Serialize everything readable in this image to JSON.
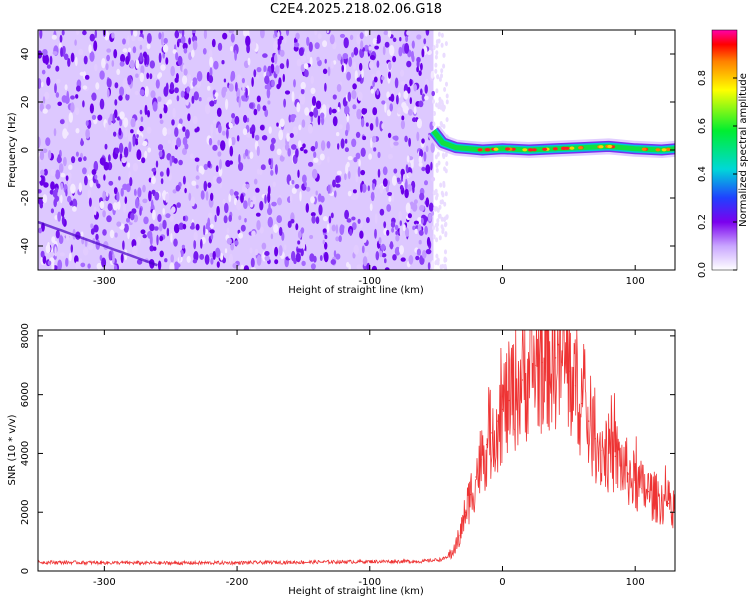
{
  "title": "C2E4.2025.218.02.06.G18",
  "chart_data": [
    {
      "type": "heatmap",
      "xlabel": "Height of straight line (km)",
      "ylabel": "Frequency (Hz)",
      "xlim": [
        -350,
        130
      ],
      "ylim": [
        -50,
        50
      ],
      "xticks": [
        -300,
        -200,
        -100,
        0,
        100
      ],
      "yticks": [
        -40,
        -20,
        0,
        20,
        40
      ],
      "noise_region": [
        -350,
        -52
      ],
      "signal_trace": {
        "x": [
          -52,
          -45,
          -35,
          -25,
          -15,
          0,
          20,
          40,
          60,
          80,
          100,
          120,
          130
        ],
        "y": [
          8,
          3,
          1,
          0.5,
          0,
          0.5,
          0,
          0.5,
          1,
          1.5,
          0.5,
          0,
          0.5
        ]
      },
      "colorbar": {
        "label": "Normalized spectral amplitude",
        "range": [
          0,
          1
        ],
        "ticks": [
          0.0,
          0.2,
          0.4,
          0.6,
          0.8
        ],
        "tick_labels": [
          "0.0",
          "0.2",
          "0.4",
          "0.6",
          "0.8"
        ]
      }
    },
    {
      "type": "line",
      "xlabel": "Height of straight line (km)",
      "ylabel": "SNR (10 * v/v)",
      "xlim": [
        -350,
        130
      ],
      "ylim": [
        0,
        8200
      ],
      "xticks": [
        -300,
        -200,
        -100,
        0,
        100
      ],
      "yticks": [
        0,
        2000,
        4000,
        6000,
        8000
      ],
      "color": "#ee3333",
      "series": [
        {
          "x": [
            -350,
            -300,
            -250,
            -200,
            -150,
            -100,
            -60,
            -45,
            -38,
            -32,
            -28,
            -24,
            -20,
            -16,
            -12,
            -8,
            -4,
            0,
            5,
            10,
            15,
            20,
            25,
            30,
            35,
            40,
            45,
            50,
            55,
            60,
            65,
            70,
            75,
            80,
            85,
            90,
            95,
            100,
            105,
            110,
            115,
            120,
            125,
            130
          ],
          "values": [
            300,
            280,
            270,
            280,
            300,
            320,
            330,
            400,
            600,
            1200,
            2000,
            2600,
            3200,
            3800,
            4300,
            4700,
            5100,
            5500,
            5800,
            6200,
            6500,
            6800,
            7000,
            7100,
            7200,
            7250,
            7100,
            6800,
            6300,
            5700,
            5100,
            4500,
            4100,
            4000,
            3900,
            3600,
            3300,
            3000,
            2800,
            2700,
            2500,
            2400,
            2300,
            2200
          ]
        }
      ]
    }
  ]
}
